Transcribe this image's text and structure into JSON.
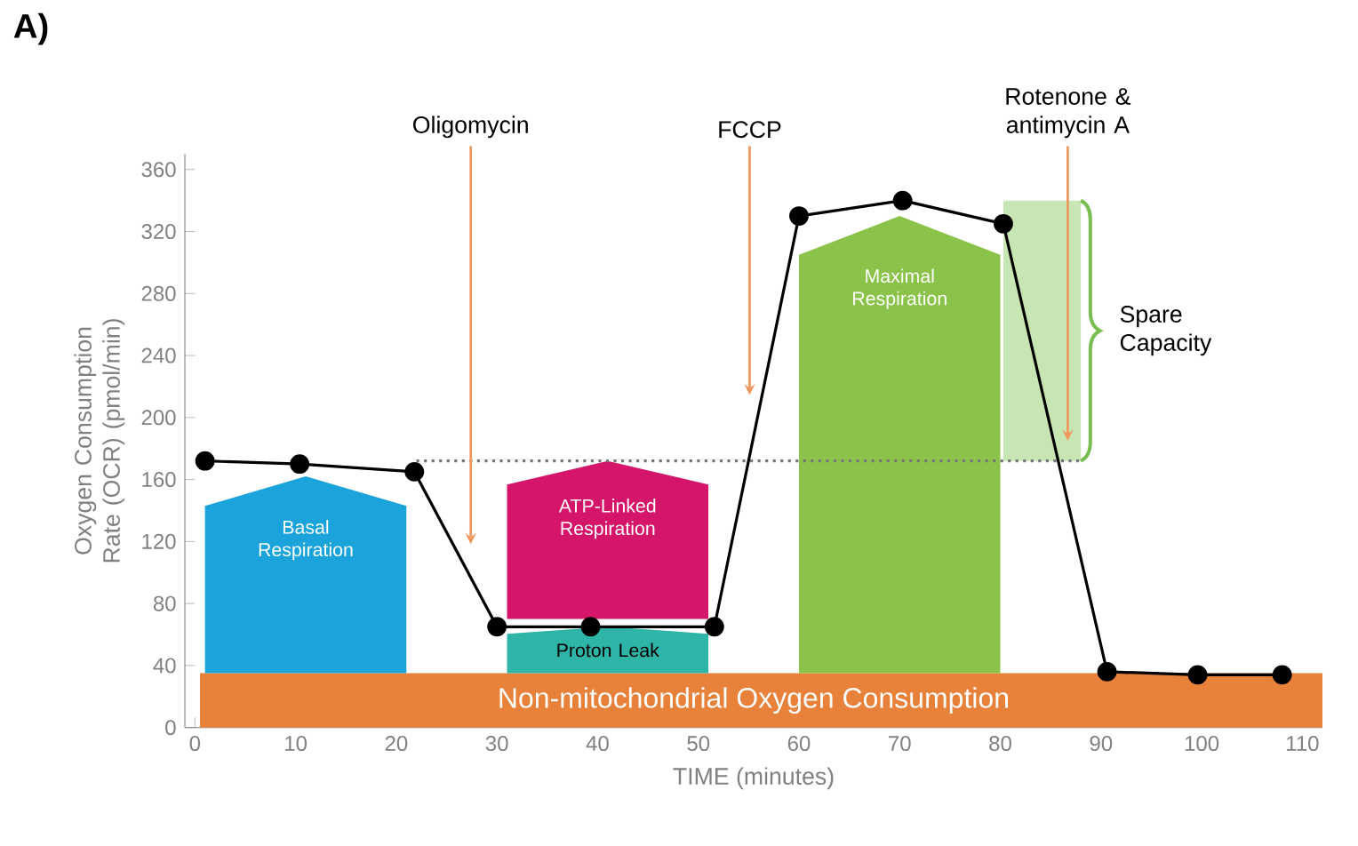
{
  "chart_data": {
    "type": "line",
    "title": "A)",
    "xlabel": "TIME (minutes)",
    "ylabel": "Oxygen Consumption Rate (OCR) (pmol/min)",
    "xlim": [
      -1,
      112
    ],
    "ylim": [
      0,
      370
    ],
    "xticks": [
      0,
      10,
      20,
      30,
      40,
      50,
      60,
      70,
      80,
      90,
      100,
      110
    ],
    "yticks": [
      0,
      40,
      80,
      120,
      160,
      200,
      240,
      280,
      320,
      360
    ],
    "series": [
      {
        "type": "bar",
        "x": [
          11,
          41,
          70
        ],
        "base": [
          35,
          70,
          35
        ],
        "values": [
          127,
          102,
          295
        ],
        "colors": [
          "#1ba3dc",
          "#d4156a",
          "#8bc34a"
        ]
      },
      {
        "type": "bar",
        "x": [
          41
        ],
        "base": [
          35
        ],
        "values": [
          30
        ],
        "colors": [
          "#2fb5a8"
        ]
      },
      {
        "type": "bar",
        "name": "Spare Capacity",
        "x": [
          84.15
        ],
        "base": [
          172
        ],
        "values": [
          168
        ],
        "colors": [
          "#c8e6b4"
        ]
      },
      {
        "x": [
          22,
          88
        ],
        "values": [
          172,
          172
        ],
        "color": "#777777",
        "line_style": "dotted",
        "marker": "none"
      },
      {
        "x": [
          1,
          10.4,
          21.8,
          30,
          39.3,
          51.6,
          60,
          70.3,
          80.3,
          90.6,
          99.6,
          108
        ],
        "values": [
          172,
          170,
          165,
          65,
          65,
          65,
          330,
          340,
          325,
          36,
          34,
          34
        ],
        "color": "#000000",
        "marker": "circle",
        "line_style": "solid"
      }
    ],
    "bands": [
      {
        "axis": "y",
        "from": 0,
        "to": 35,
        "label": "Non-mitochondrial Oxygen Consumption",
        "color": "#e8813a"
      }
    ],
    "ref_lines": [
      {
        "axis": "x",
        "value": 27.4,
        "label": "Oligomycin",
        "color": "#f0965a"
      },
      {
        "axis": "x",
        "value": 55.1,
        "label": "FCCP",
        "color": "#f0965a"
      },
      {
        "axis": "x",
        "value": 86.7,
        "label": "Rotenone & antimycin A",
        "color": "#f0965a"
      }
    ],
    "annotations": [
      "Basal Respiration",
      "ATP-Linked Respiration",
      "Maximal Respiration",
      "Proton Leak"
    ],
    "grid": false
  }
}
